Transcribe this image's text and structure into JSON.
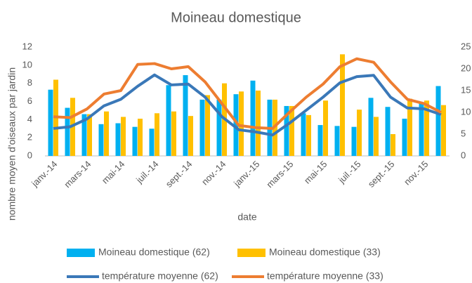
{
  "chart_data": {
    "type": "bar",
    "title": "Moineau domestique",
    "x_label": "date",
    "y_label": "nombre moyen d'oiseaux par jardin",
    "categories": [
      "janv.-14",
      null,
      "mars-14",
      null,
      "mai-14",
      null,
      "juil.-14",
      null,
      "sept.-14",
      null,
      "nov.-14",
      null,
      "janv.-15",
      null,
      "mars-15",
      null,
      "mai-15",
      null,
      "juil.-15",
      null,
      "sept.-15",
      null,
      "nov.-15",
      null
    ],
    "series": [
      {
        "name": "Moineau domestique (62)",
        "type": "bar",
        "color": "#00b0f0",
        "values": [
          7.3,
          5.3,
          4.6,
          3.5,
          3.6,
          3.2,
          3.0,
          7.8,
          8.9,
          6.2,
          6.2,
          6.8,
          8.3,
          6.2,
          5.5,
          4.7,
          3.4,
          3.3,
          3.2,
          6.4,
          5.4,
          4.1,
          5.9,
          7.7
        ]
      },
      {
        "name": "Moineau domestique (33)",
        "type": "bar",
        "color": "#ffc000",
        "values": [
          8.4,
          6.4,
          4.6,
          4.9,
          4.3,
          4.1,
          4.7,
          4.9,
          4.4,
          6.7,
          8.0,
          7.1,
          7.2,
          6.2,
          5.5,
          4.5,
          6.1,
          11.2,
          5.1,
          4.3,
          2.4,
          6.3,
          6.1,
          5.6
        ]
      },
      {
        "name": "température moyenne (62)",
        "type": "line",
        "axis": "y2",
        "color": "#3a78b8",
        "values": [
          6.3,
          6.7,
          8.5,
          11.5,
          13.0,
          16.0,
          18.6,
          16.3,
          16.5,
          13.5,
          9.0,
          6.0,
          5.5,
          4.8,
          7.5,
          10.5,
          13.5,
          16.8,
          18.2,
          18.5,
          13.5,
          11.0,
          10.8,
          9.5
        ]
      },
      {
        "name": "température moyenne (33)",
        "type": "line",
        "axis": "y2",
        "color": "#ed7d31",
        "values": [
          9.0,
          8.8,
          10.8,
          14.2,
          15.0,
          21.0,
          21.2,
          20.0,
          20.5,
          17.0,
          12.0,
          7.0,
          6.5,
          6.3,
          10.0,
          13.5,
          16.5,
          20.5,
          22.3,
          21.5,
          17.0,
          13.0,
          12.0,
          10.0
        ]
      }
    ],
    "ylim": [
      0,
      12
    ],
    "yticks": [
      0,
      2,
      4,
      6,
      8,
      10,
      12
    ],
    "y2lim": [
      0,
      25
    ],
    "y2ticks": [
      0,
      5,
      10,
      15,
      20,
      25
    ],
    "grid": false,
    "legend": "bottom"
  }
}
